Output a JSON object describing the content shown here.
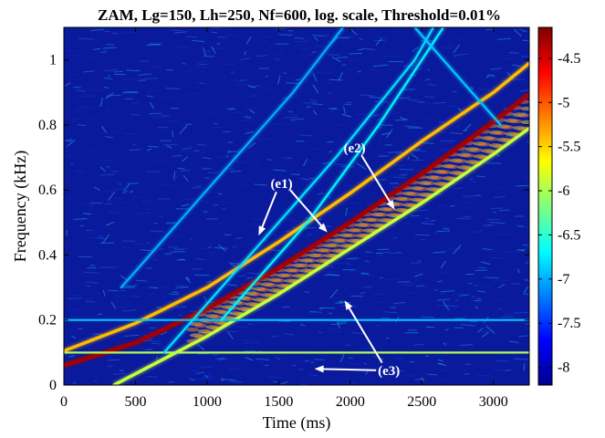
{
  "chart_data": {
    "type": "heatmap",
    "title": "ZAM, Lg=150, Lh=250, Nf=600, log. scale, Threshold=0.01%",
    "xlabel": "Time (ms)",
    "ylabel": "Frequency (kHz)",
    "xlim": [
      0,
      3250
    ],
    "ylim": [
      0,
      1.1
    ],
    "xticks": [
      0,
      500,
      1000,
      1500,
      2000,
      2500,
      3000
    ],
    "xtick_labels": [
      "0",
      "500",
      "1000",
      "1500",
      "2000",
      "2500",
      "3000"
    ],
    "yticks": [
      0,
      0.2,
      0.4,
      0.6,
      0.8,
      1
    ],
    "ytick_labels": [
      "0",
      "0.2",
      "0.4",
      "0.6",
      "0.8",
      "1"
    ],
    "colorbar": {
      "ticks": [
        -4.5,
        -5,
        -5.5,
        -6,
        -6.5,
        -7,
        -7.5,
        -8
      ],
      "tick_labels": [
        "-4.5",
        "-5",
        "-5.5",
        "-6",
        "-6.5",
        "-7",
        "-7.5",
        "-8"
      ],
      "range": [
        -8.2,
        -4.15
      ],
      "colormap": "jet"
    },
    "ridges": [
      {
        "points": [
          [
            0,
            0.06
          ],
          [
            500,
            0.13
          ],
          [
            1000,
            0.235
          ],
          [
            1500,
            0.36
          ],
          [
            2000,
            0.5
          ],
          [
            2500,
            0.65
          ],
          [
            3000,
            0.81
          ],
          [
            3250,
            0.895
          ]
        ],
        "level": -4.3
      },
      {
        "points": [
          [
            0,
            0.105
          ],
          [
            500,
            0.19
          ],
          [
            1000,
            0.3
          ],
          [
            1500,
            0.44
          ],
          [
            2000,
            0.59
          ],
          [
            2500,
            0.75
          ],
          [
            3000,
            0.9
          ],
          [
            3250,
            0.99
          ]
        ],
        "level": -5.4
      },
      {
        "points": [
          [
            350,
            0.0
          ],
          [
            1000,
            0.15
          ],
          [
            1500,
            0.28
          ],
          [
            2000,
            0.42
          ],
          [
            2500,
            0.56
          ],
          [
            3000,
            0.71
          ],
          [
            3250,
            0.79
          ]
        ],
        "level": -5.9
      },
      {
        "points": [
          [
            0,
            0.1
          ],
          [
            3250,
            0.1
          ]
        ],
        "level": -6.0
      },
      {
        "points": [
          [
            0,
            0.2
          ],
          [
            3250,
            0.2
          ]
        ],
        "level": -6.9
      },
      {
        "points": [
          [
            700,
            0.1
          ],
          [
            1300,
            0.4
          ],
          [
            1900,
            0.7
          ],
          [
            2450,
            1.0
          ],
          [
            2580,
            1.1
          ]
        ],
        "level": -6.8
      },
      {
        "points": [
          [
            1100,
            0.2
          ],
          [
            1700,
            0.5
          ],
          [
            2200,
            0.8
          ],
          [
            2500,
            1.0
          ],
          [
            2650,
            1.1
          ]
        ],
        "level": -6.7
      },
      {
        "points": [
          [
            400,
            0.3
          ],
          [
            1000,
            0.6
          ],
          [
            1600,
            0.9
          ],
          [
            1950,
            1.1
          ]
        ],
        "level": -7.0
      },
      {
        "points": [
          [
            2450,
            1.1
          ],
          [
            2750,
            0.95
          ],
          [
            3050,
            0.8
          ]
        ],
        "level": -6.9
      }
    ],
    "annotations": [
      {
        "text": "(e1)",
        "label_at": [
          1520,
          0.62
        ],
        "arrows_to": [
          [
            1360,
            0.46
          ],
          [
            1840,
            0.47
          ]
        ]
      },
      {
        "text": "(e2)",
        "label_at": [
          2030,
          0.73
        ],
        "arrows_to": [
          [
            2310,
            0.54
          ]
        ]
      },
      {
        "text": "(e3)",
        "label_at": [
          2270,
          0.045
        ],
        "arrows_to": [
          [
            1750,
            0.05
          ],
          [
            1960,
            0.26
          ]
        ]
      }
    ]
  }
}
